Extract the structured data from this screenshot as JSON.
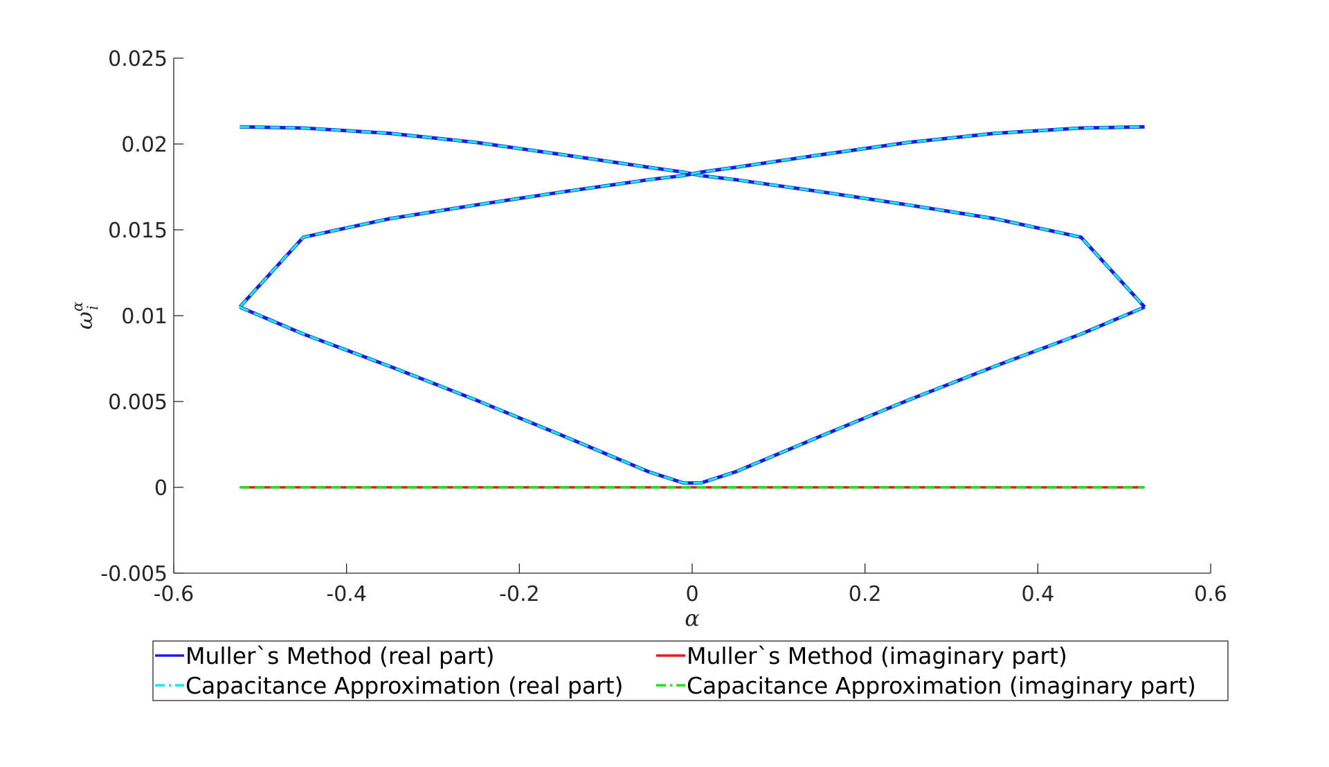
{
  "chart_data": {
    "type": "line",
    "xlabel": "α",
    "ylabel": "ω",
    "ylabel_superscript": "α",
    "ylabel_subscript": "i",
    "xlim": [
      -0.6,
      0.6
    ],
    "ylim": [
      -0.005,
      0.025
    ],
    "xticks": [
      -0.6,
      -0.4,
      -0.2,
      0,
      0.2,
      0.4,
      0.6
    ],
    "xtick_labels": [
      "-0.6",
      "-0.4",
      "-0.2",
      "0",
      "0.2",
      "0.4",
      "0.6"
    ],
    "yticks": [
      -0.005,
      0,
      0.005,
      0.01,
      0.015,
      0.02,
      0.025
    ],
    "ytick_labels": [
      "-0.005",
      "0",
      "0.005",
      "0.01",
      "0.015",
      "0.02",
      "0.025"
    ],
    "grid": false,
    "legend_position": "bottom-outside",
    "legend_entries": [
      "Muller`s Method (real part)",
      "Muller`s Method (imaginary part)",
      "Capacitance Approximation (real part)",
      "Capacitance Approximation (imaginary part)"
    ],
    "colors": {
      "muller_real": "#1a1ae6",
      "muller_imag": "#e61a1a",
      "cap_real": "#19e6e6",
      "cap_imag": "#19e619"
    },
    "x": [
      -0.5236,
      -0.45,
      -0.35,
      -0.25,
      -0.15,
      -0.05,
      -0.01,
      0,
      0.01,
      0.05,
      0.15,
      0.25,
      0.35,
      0.45,
      0.5236
    ],
    "series": [
      {
        "name": "Muller`s Method (real part)",
        "values": [
          0.021,
          0.02093,
          0.02062,
          0.02009,
          0.01938,
          0.01864,
          0.01836,
          0.01826,
          0.01816,
          0.01792,
          0.01721,
          0.01645,
          0.01565,
          0.01457,
          0.0105
        ]
      },
      {
        "name": "Muller`s Method (real part)",
        "values": [
          0.0105,
          0.01457,
          0.01565,
          0.01645,
          0.01721,
          0.01792,
          0.01816,
          0.01826,
          0.01836,
          0.01864,
          0.01938,
          0.02009,
          0.02062,
          0.02093,
          0.021
        ]
      },
      {
        "name": "Muller`s Method (real part)",
        "values": [
          0.0105,
          0.00893,
          0.00705,
          0.00508,
          0.00301,
          0.0009,
          0.00025,
          0.00025,
          0.00025,
          0.0009,
          0.00301,
          0.00508,
          0.00705,
          0.00893,
          0.0105
        ]
      },
      {
        "name": "Muller`s Method (imaginary part)",
        "values": [
          0,
          0,
          0,
          0,
          0,
          0,
          0,
          0,
          0,
          0,
          0,
          0,
          0,
          0,
          0
        ]
      }
    ]
  }
}
